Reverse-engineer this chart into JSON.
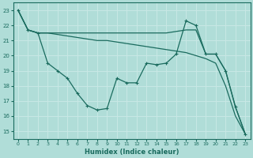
{
  "xlabel": "Humidex (Indice chaleur)",
  "xlim": [
    -0.5,
    23.5
  ],
  "ylim": [
    14.5,
    23.5
  ],
  "yticks": [
    15,
    16,
    17,
    18,
    19,
    20,
    21,
    22,
    23
  ],
  "xticks": [
    0,
    1,
    2,
    3,
    4,
    5,
    6,
    7,
    8,
    9,
    10,
    11,
    12,
    13,
    14,
    15,
    16,
    17,
    18,
    19,
    20,
    21,
    22,
    23
  ],
  "bg_color": "#b0ddd8",
  "grid_color": "#c8e8e5",
  "line_color": "#1a6b5e",
  "line1_x": [
    0,
    1,
    2,
    3,
    4,
    5,
    6,
    7,
    8,
    9,
    10,
    11,
    12,
    13,
    14,
    15,
    16,
    17,
    18,
    19,
    20,
    21,
    22,
    23
  ],
  "line1_y": [
    23,
    21.7,
    21.5,
    19.5,
    19.0,
    18.5,
    17.5,
    16.7,
    16.4,
    16.5,
    18.5,
    18.2,
    18.2,
    19.5,
    19.4,
    19.5,
    20.1,
    22.3,
    22.0,
    20.1,
    20.1,
    19.0,
    16.6,
    14.8
  ],
  "line2_x": [
    0,
    1,
    2,
    3,
    4,
    5,
    6,
    7,
    8,
    9,
    10,
    11,
    12,
    13,
    14,
    15,
    16,
    17,
    18,
    19,
    20,
    21,
    22,
    23
  ],
  "line2_y": [
    23,
    21.7,
    21.5,
    21.5,
    21.4,
    21.3,
    21.2,
    21.1,
    21.0,
    21.0,
    20.9,
    20.8,
    20.7,
    20.6,
    20.5,
    20.4,
    20.3,
    20.2,
    20.0,
    19.8,
    19.5,
    18.0,
    16.0,
    14.8
  ],
  "line3_x": [
    0,
    1,
    2,
    3,
    4,
    5,
    6,
    7,
    8,
    9,
    10,
    11,
    12,
    13,
    14,
    15,
    16,
    17,
    18,
    19,
    20,
    21,
    22,
    23
  ],
  "line3_y": [
    23,
    21.7,
    21.5,
    21.5,
    21.5,
    21.5,
    21.5,
    21.5,
    21.5,
    21.5,
    21.5,
    21.5,
    21.5,
    21.5,
    21.5,
    21.5,
    21.6,
    21.7,
    21.7,
    20.1,
    20.1,
    19.0,
    16.6,
    14.8
  ]
}
